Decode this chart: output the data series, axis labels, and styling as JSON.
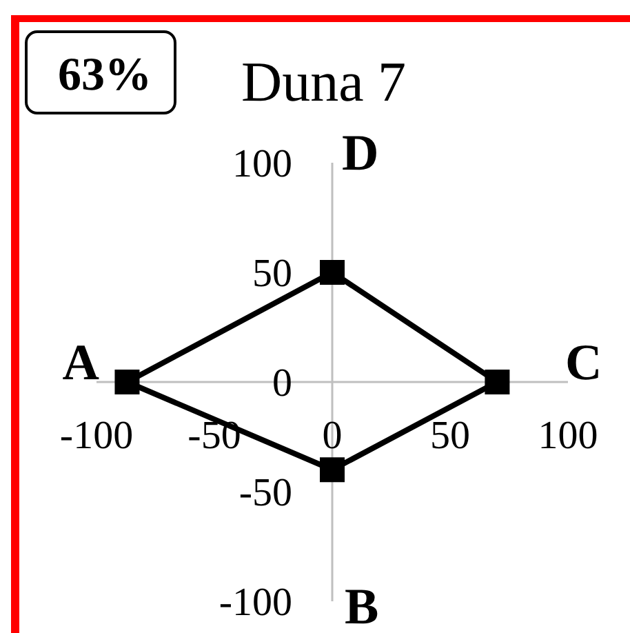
{
  "chart_data": {
    "type": "scatter",
    "title": "Duna 7",
    "annotations": [
      "63%",
      "D",
      "A",
      "C",
      "B"
    ],
    "x": [
      -87,
      0,
      70,
      0
    ],
    "values": [
      0,
      -40,
      0,
      50
    ],
    "color": "#000000",
    "marker": "square",
    "line_style": "solid",
    "xlim": [
      -100,
      100
    ],
    "ylim": [
      -100,
      100
    ],
    "xticks": [
      -100,
      -50,
      0,
      50,
      100
    ],
    "yticks": [
      -100,
      -50,
      0,
      50,
      100
    ]
  }
}
